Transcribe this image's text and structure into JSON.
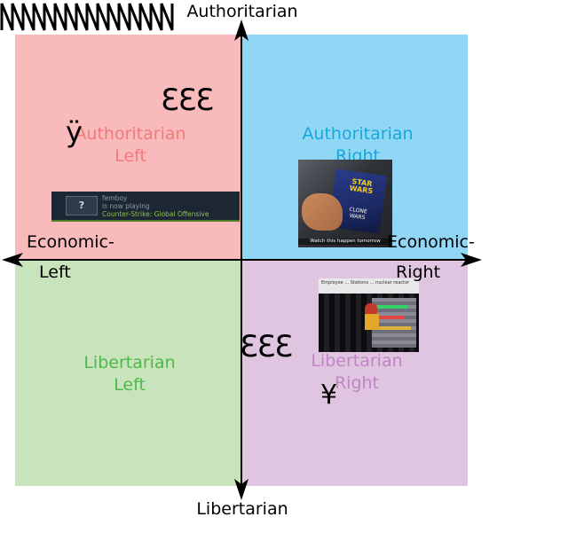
{
  "axes": {
    "top": "Authoritarian",
    "bottom": "Libertarian",
    "left_line1": "Economic-",
    "left_line2": "Left",
    "right_line1": "Economic-",
    "right_line2": "Right"
  },
  "quadrants": {
    "auth_left": {
      "line1": "Authoritarian",
      "line2": "Left",
      "color": "#f8baba",
      "text_color": "#ef7b7b"
    },
    "auth_right": {
      "line1": "Authoritarian",
      "line2": "Right",
      "color": "#92d6f6",
      "text_color": "#14a9d8"
    },
    "lib_left": {
      "line1": "Libertarian",
      "line2": "Left",
      "color": "#c9e4bc",
      "text_color": "#4fb84a"
    },
    "lib_right": {
      "line1": "Libertarian",
      "line2": "Right",
      "color": "#e0c5e1",
      "text_color": "#c084c4"
    }
  },
  "glyphs": {
    "auth_left_333": "333",
    "lib_right_333": "333",
    "y_umlaut": "ÿ",
    "yen": "¥"
  },
  "steam_card": {
    "avatar": "?",
    "username": "femboy",
    "status": "is now playing",
    "game": "Counter-Strike: Global Offensive"
  },
  "photo_starwars": {
    "logo": "STAR WARS",
    "sublabel": "CLONE WARS",
    "caption": "Watch this happen tomorrow"
  },
  "photo_game": {
    "caption": "Employee ... Stations ... nuclear reactor"
  }
}
